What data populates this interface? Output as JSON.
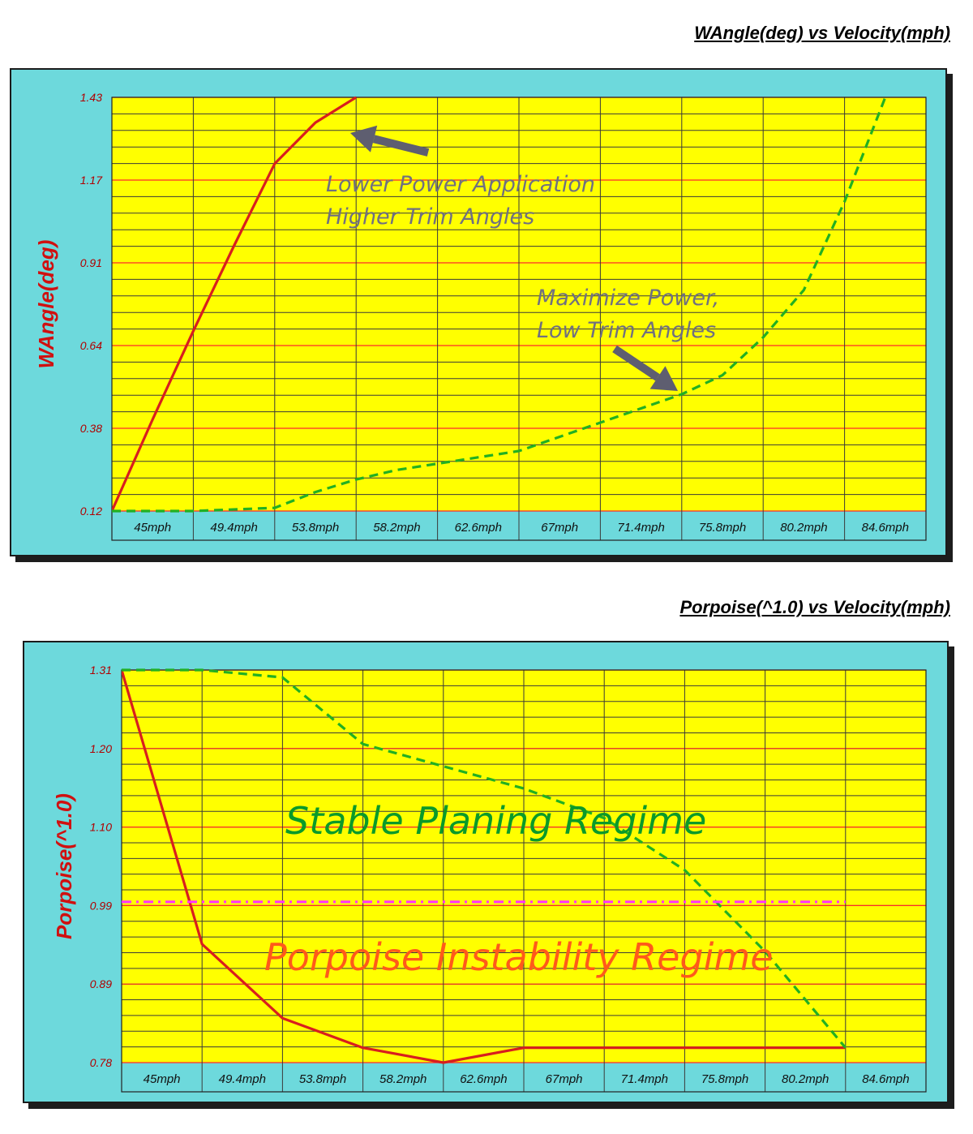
{
  "chart_data": [
    {
      "type": "line",
      "title": "WAngle(deg) vs Velocity(mph)",
      "ylabel": "WAngle(deg)",
      "xlabel": "",
      "categories": [
        "45mph",
        "49.4mph",
        "53.8mph",
        "58.2mph",
        "62.6mph",
        "67mph",
        "71.4mph",
        "75.8mph",
        "80.2mph",
        "84.6mph"
      ],
      "yticks": [
        "0.12",
        "0.38",
        "0.64",
        "0.91",
        "1.17",
        "1.43"
      ],
      "ylim": [
        0.12,
        1.43
      ],
      "grid": true,
      "series": [
        {
          "color": "#d81e1e",
          "style": "solid",
          "points": [
            [
              0,
              0.12
            ],
            [
              0.5,
              0.41
            ],
            [
              1,
              0.69
            ],
            [
              1.5,
              0.96
            ],
            [
              2,
              1.22
            ],
            [
              2.5,
              1.35
            ],
            [
              3,
              1.43
            ]
          ]
        },
        {
          "color": "#22b022",
          "style": "dashed",
          "points": [
            [
              0,
              0.12
            ],
            [
              1,
              0.12
            ],
            [
              2,
              0.13
            ],
            [
              2.5,
              0.18
            ],
            [
              3,
              0.22
            ],
            [
              3.5,
              0.25
            ],
            [
              4,
              0.27
            ],
            [
              5,
              0.31
            ],
            [
              6,
              0.4
            ],
            [
              7,
              0.49
            ],
            [
              7.5,
              0.55
            ],
            [
              8,
              0.67
            ],
            [
              8.5,
              0.82
            ],
            [
              9,
              1.1
            ],
            [
              9.5,
              1.43
            ]
          ]
        }
      ],
      "annotations": [
        {
          "lines": [
            "Lower Power Application",
            "Higher Trim Angles"
          ]
        },
        {
          "lines": [
            "Maximize Power,",
            "Low Trim Angles"
          ]
        }
      ]
    },
    {
      "type": "line",
      "title": "Porpoise(^1.0) vs Velocity(mph)",
      "ylabel": "Porpoise(^1.0)",
      "xlabel": "",
      "categories": [
        "45mph",
        "49.4mph",
        "53.8mph",
        "58.2mph",
        "62.6mph",
        "67mph",
        "71.4mph",
        "75.8mph",
        "80.2mph",
        "84.6mph"
      ],
      "yticks": [
        "0.78",
        "0.89",
        "0.99",
        "1.10",
        "1.20",
        "1.31"
      ],
      "ylim": [
        0.78,
        1.31
      ],
      "grid": true,
      "series": [
        {
          "color": "#d81e1e",
          "style": "solid",
          "points": [
            [
              0,
              1.31
            ],
            [
              1,
              0.94
            ],
            [
              2,
              0.84
            ],
            [
              3,
              0.8
            ],
            [
              4,
              0.78
            ],
            [
              5,
              0.8
            ],
            [
              6,
              0.8
            ],
            [
              7,
              0.8
            ],
            [
              8,
              0.8
            ],
            [
              9,
              0.8
            ]
          ]
        },
        {
          "color": "#22b022",
          "style": "dashed",
          "points": [
            [
              0,
              1.31
            ],
            [
              1,
              1.31
            ],
            [
              2,
              1.3
            ],
            [
              3,
              1.21
            ],
            [
              4,
              1.18
            ],
            [
              5,
              1.15
            ],
            [
              6,
              1.11
            ],
            [
              7,
              1.04
            ],
            [
              8,
              0.93
            ],
            [
              9,
              0.8
            ]
          ]
        },
        {
          "color": "#ff33ff",
          "style": "dashdot",
          "points": [
            [
              0,
              0.997
            ],
            [
              9,
              0.997
            ]
          ]
        }
      ],
      "annotations": [
        {
          "lines": [
            "Stable Planing Regime"
          ]
        },
        {
          "lines": [
            "Porpoise Instability Regime"
          ]
        }
      ]
    }
  ]
}
